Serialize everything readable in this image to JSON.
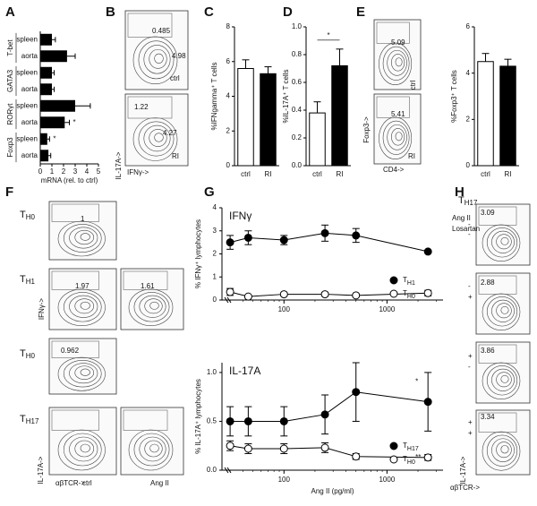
{
  "chart_data": [
    {
      "type": "hbar",
      "categories": [
        "spleen",
        "aorta",
        "spleen",
        "aorta",
        "spleen",
        "aorta",
        "spleen",
        "aorta"
      ],
      "groups": [
        "T-bet",
        "GATA3",
        "RORγt",
        "Foxp3"
      ],
      "values": [
        1.0,
        2.3,
        1.0,
        1.0,
        3.0,
        2.1,
        0.6,
        0.7
      ],
      "errors": [
        0.3,
        0.7,
        0.2,
        0.2,
        1.3,
        0.4,
        0.2,
        0.2
      ],
      "significance": [
        null,
        null,
        null,
        null,
        null,
        "*",
        "*",
        null
      ],
      "color": "#000000",
      "xlim": [
        0,
        5
      ],
      "xticks": [
        0,
        1,
        2,
        3,
        4,
        5
      ],
      "xlabel": "mRNA (rel. to ctrl)"
    },
    {
      "type": "bar",
      "categories": [
        "ctrl",
        "RI"
      ],
      "values": [
        5.6,
        5.3
      ],
      "errors": [
        0.5,
        0.4
      ],
      "colors": [
        "#ffffff",
        "#000000"
      ],
      "ylim": [
        0,
        8
      ],
      "yticks": [
        0,
        2,
        4,
        6,
        8
      ],
      "ylabel": "%IFNgamma⁺ T cells"
    },
    {
      "type": "bar",
      "categories": [
        "ctrl",
        "RI"
      ],
      "values": [
        0.38,
        0.72
      ],
      "errors": [
        0.08,
        0.12
      ],
      "colors": [
        "#ffffff",
        "#000000"
      ],
      "ylim": [
        0,
        1.0
      ],
      "yticks": [
        {
          "value": 0,
          "label": "0.0"
        },
        0.2,
        0.4,
        0.6,
        0.8,
        {
          "value": 1,
          "label": "1.0"
        }
      ],
      "ylabel": "%IL-17A⁺ T cells",
      "significance": "*"
    },
    {
      "type": "bar",
      "categories": [
        "ctrl",
        "RI"
      ],
      "values": [
        4.5,
        4.3
      ],
      "errors": [
        0.35,
        0.3
      ],
      "colors": [
        "#ffffff",
        "#000000"
      ],
      "ylim": [
        0,
        6
      ],
      "yticks": [
        0,
        2,
        4,
        6
      ],
      "ylabel": "%Foxp3⁺ T cells"
    },
    {
      "type": "line",
      "title": "IFNγ",
      "x": [
        30,
        45,
        100,
        250,
        500,
        2500
      ],
      "log_x": true,
      "xlim": [
        25,
        3500
      ],
      "xticks": [
        100,
        1000
      ],
      "ylim": [
        0,
        4
      ],
      "yticks": [
        0,
        1,
        2,
        3,
        4
      ],
      "ylabel": "% IFNγ⁺ lymphocytes",
      "series": [
        {
          "name": "TH1",
          "color": "#000000",
          "values": [
            2.5,
            2.7,
            2.6,
            2.9,
            2.8,
            2.1
          ],
          "errors": [
            0.3,
            0.3,
            0.2,
            0.35,
            0.3,
            0.05
          ]
        },
        {
          "name": "TH0",
          "color": "#ffffff",
          "values": [
            0.35,
            0.15,
            0.25,
            0.25,
            0.2,
            0.3
          ],
          "errors": [
            0.15,
            0.05,
            0.05,
            0.08,
            0.05,
            0.12
          ]
        }
      ]
    },
    {
      "type": "line",
      "title": "IL-17A",
      "x": [
        30,
        45,
        100,
        250,
        500,
        2500
      ],
      "log_x": true,
      "xlim": [
        25,
        3500
      ],
      "xticks": [
        100,
        1000
      ],
      "xlabel": "Ang II (pg/ml)",
      "ylim": [
        0,
        1.1
      ],
      "yticks": [
        {
          "value": 0,
          "label": "0.0"
        },
        0.5,
        {
          "value": 1,
          "label": "1.0"
        }
      ],
      "ylabel": "% IL-17A⁺ lymphocytes",
      "series": [
        {
          "name": "TH17",
          "color": "#000000",
          "values": [
            0.5,
            0.5,
            0.5,
            0.57,
            0.8,
            0.7
          ],
          "errors": [
            0.15,
            0.15,
            0.15,
            0.2,
            0.3,
            0.3
          ],
          "significance": [
            null,
            null,
            null,
            null,
            null,
            "*"
          ]
        },
        {
          "name": "TH0",
          "color": "#ffffff",
          "values": [
            0.25,
            0.22,
            0.22,
            0.23,
            0.14,
            0.13
          ],
          "errors": [
            0.05,
            0.05,
            0.05,
            0.05,
            0.03,
            0.03
          ],
          "significance": [
            null,
            null,
            null,
            null,
            null,
            "**"
          ]
        }
      ]
    }
  ],
  "panel_letters": [
    "A",
    "B",
    "C",
    "D",
    "E",
    "F",
    "G",
    "H"
  ],
  "cell_labels": [
    {
      "base": "T",
      "sub": "H0"
    },
    {
      "base": "T",
      "sub": "H1"
    },
    {
      "base": "T",
      "sub": "H0"
    },
    {
      "base": "T",
      "sub": "H17"
    },
    {
      "base": "T",
      "sub": "H17"
    }
  ],
  "flow_texts": [
    "0.485",
    "4.98",
    "ctrl",
    "1.22",
    "4.27",
    "RI",
    "IL-17A->",
    "IFNγ->",
    "5.09",
    "ctrl",
    "5.41",
    "RI",
    "Foxp3->",
    "CD4->",
    "1",
    "1.97",
    "1.61",
    "IFNγ->",
    "0.962",
    "IL-17A->",
    "αβTCR->",
    "ctrl",
    "Ang II",
    "Ang II",
    "Losartan",
    "-",
    "-",
    "3.09",
    "2.88",
    "-",
    "+",
    "3.86",
    "+",
    "-",
    "3.34",
    "+",
    "+",
    "IL-17A->",
    "αβTCR->"
  ]
}
